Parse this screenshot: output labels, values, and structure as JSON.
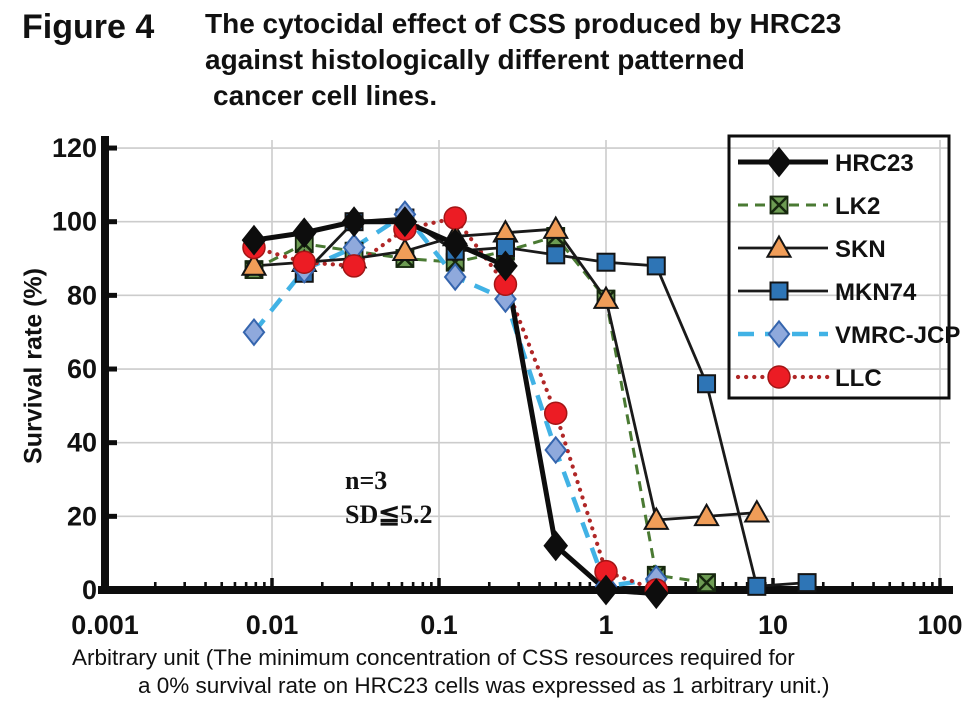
{
  "header": {
    "figure_label": "Figure 4",
    "title_lines": [
      "The cytocidal effect of CSS produced by  HRC23",
      "against histologically different patterned",
      "cancer cell lines."
    ]
  },
  "annotation": {
    "n_label": "n=3",
    "sd_label": "SD≦5.2"
  },
  "caption": {
    "line1": "Arbitrary unit (The minimum concentration of CSS resources required for",
    "line2": "a 0% survival rate on HRC23 cells was expressed as 1 arbitrary unit.)"
  },
  "chart_data": {
    "type": "line",
    "x_scale": "log",
    "xlabel": "Arbitrary unit",
    "ylabel": "Survival rate (%)",
    "xlim": [
      0.001,
      100
    ],
    "ylim": [
      0,
      120
    ],
    "x_ticks": [
      "0.001",
      "0.01",
      "0.1",
      "1",
      "10",
      "100"
    ],
    "y_ticks": [
      0,
      20,
      40,
      60,
      80,
      100,
      120
    ],
    "grid": true,
    "legend_position": "top-right",
    "grid_color": "#cccccc",
    "axis_color": "#0d0d0d",
    "series": [
      {
        "name": "HRC23",
        "x": [
          0.0078,
          0.0156,
          0.031,
          0.0625,
          0.125,
          0.25,
          0.5,
          1,
          2
        ],
        "values": [
          95,
          97,
          100,
          100,
          94,
          88,
          12,
          0,
          -1
        ],
        "style": {
          "marker": "diamond",
          "marker_fill": "#0d0d0d",
          "marker_stroke": "#0d0d0d",
          "line_color": "#0d0d0d",
          "line_width": 5,
          "dash": null,
          "marker_size": 12
        }
      },
      {
        "name": "LK2",
        "x": [
          0.0078,
          0.0156,
          0.031,
          0.0625,
          0.125,
          0.25,
          0.5,
          1,
          2,
          4
        ],
        "values": [
          87,
          94,
          92,
          90,
          89,
          92,
          96,
          79,
          4,
          2
        ],
        "style": {
          "marker": "xsquare",
          "marker_fill": "#6d9c53",
          "marker_stroke": "#16270e",
          "line_color": "#4a7a33",
          "line_width": 3,
          "dash": "10,7",
          "marker_size": 10
        }
      },
      {
        "name": "SKN",
        "x": [
          0.0078,
          0.0156,
          0.031,
          0.0625,
          0.125,
          0.25,
          0.5,
          1,
          2,
          4,
          8
        ],
        "values": [
          88,
          89,
          90,
          92,
          96,
          97,
          98,
          79,
          19,
          20,
          21
        ],
        "style": {
          "marker": "triangle",
          "marker_fill": "#f09d58",
          "marker_stroke": "#141414",
          "line_color": "#1a1a1a",
          "line_width": 2.8,
          "dash": null,
          "marker_size": 11
        }
      },
      {
        "name": "MKN74",
        "x": [
          0.0156,
          0.031,
          0.0625,
          0.125,
          0.25,
          0.5,
          1,
          2,
          4,
          8,
          16
        ],
        "values": [
          86,
          100,
          101,
          92,
          93,
          91,
          89,
          88,
          56,
          1,
          2
        ],
        "style": {
          "marker": "square",
          "marker_fill": "#2e75b6",
          "marker_stroke": "#141414",
          "line_color": "#1a1a1a",
          "line_width": 2.8,
          "dash": null,
          "marker_size": 10
        }
      },
      {
        "name": "VMRC-JCP",
        "x": [
          0.0078,
          0.0156,
          0.031,
          0.0625,
          0.125,
          0.25,
          0.5,
          1,
          2
        ],
        "values": [
          70,
          87,
          93,
          102,
          85,
          79,
          38,
          1,
          3
        ],
        "style": {
          "marker": "diamond",
          "marker_fill": "#8fa9dc",
          "marker_stroke": "#3565ae",
          "line_color": "#41b2e5",
          "line_width": 4.5,
          "dash": "16,11",
          "marker_size": 11
        }
      },
      {
        "name": "LLC",
        "x": [
          0.0078,
          0.0156,
          0.031,
          0.0625,
          0.125,
          0.25,
          0.5,
          1,
          2
        ],
        "values": [
          93,
          89,
          88,
          98,
          101,
          83,
          48,
          5,
          0
        ],
        "style": {
          "marker": "circle",
          "marker_fill": "#ec1c24",
          "marker_stroke": "#a31515",
          "line_color": "#b02727",
          "line_width": 4.2,
          "dash": "0.1,8",
          "marker_size": 11
        }
      }
    ]
  }
}
